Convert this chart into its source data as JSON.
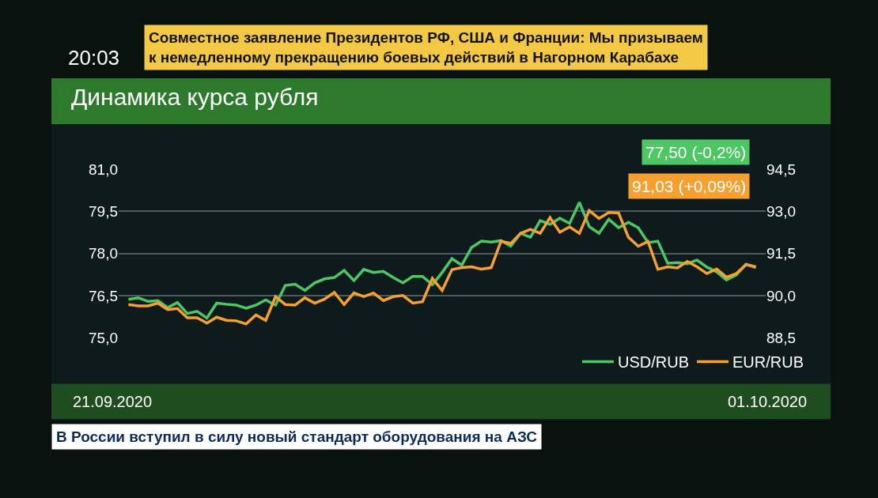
{
  "chart_data": {
    "type": "line",
    "title": "Динамика курса рубля",
    "annotations": [
      "20:03",
      "Совместное заявление Президентов РФ, США и Франции: Мы призываем\nк немедленному прекращению боевых действий в Нагорном Карабахе",
      "77,50 (-0,2%)",
      "91,03 (+0,09%)",
      "21.09.2020",
      "01.10.2020",
      "В России вступил в силу новый стандарт оборудования на АЗС"
    ],
    "series": [
      {
        "name": "USD/RUB",
        "color": "#4cc764",
        "axis": "y",
        "values": [
          76.37,
          76.43,
          76.3,
          76.33,
          76.08,
          76.26,
          75.87,
          75.95,
          75.71,
          76.24,
          76.2,
          76.17,
          76.06,
          76.17,
          76.35,
          76.17,
          76.87,
          76.91,
          76.69,
          76.96,
          77.1,
          77.15,
          77.4,
          77.04,
          77.44,
          77.33,
          77.37,
          77.15,
          76.96,
          77.19,
          77.19,
          76.89,
          77.33,
          77.82,
          77.59,
          78.22,
          78.44,
          78.41,
          78.46,
          78.27,
          78.72,
          78.58,
          79.17,
          79.04,
          79.26,
          79.07,
          79.82,
          78.96,
          78.72,
          79.22,
          78.92,
          79.11,
          78.92,
          78.39,
          78.44,
          77.66,
          77.68,
          77.64,
          77.77,
          77.52,
          77.35,
          77.06,
          77.24,
          77.62,
          77.5
        ]
      },
      {
        "name": "EUR/RUB",
        "color": "#f5a030",
        "axis": "y2",
        "values": [
          89.69,
          89.64,
          89.64,
          89.74,
          89.51,
          89.55,
          89.22,
          89.22,
          89.03,
          89.24,
          89.13,
          89.11,
          89.0,
          89.32,
          89.13,
          89.97,
          89.69,
          89.67,
          89.93,
          89.74,
          89.88,
          90.12,
          89.69,
          90.1,
          89.97,
          90.1,
          89.83,
          89.97,
          90.01,
          89.74,
          89.79,
          90.62,
          90.19,
          90.93,
          91.0,
          91.03,
          90.95,
          91.0,
          91.94,
          91.86,
          92.22,
          92.36,
          92.22,
          92.78,
          92.26,
          92.45,
          92.22,
          93.03,
          92.75,
          92.96,
          92.94,
          92.08,
          91.76,
          91.93,
          90.94,
          91.03,
          90.99,
          91.22,
          91.03,
          90.79,
          90.95,
          90.66,
          90.79,
          91.11,
          91.03
        ]
      }
    ],
    "categories": [
      null,
      null,
      null,
      null,
      null,
      null,
      null,
      null,
      null,
      null,
      null,
      null,
      null,
      null,
      null,
      null,
      null,
      null,
      null,
      null,
      null,
      null,
      null,
      null,
      null,
      null,
      null,
      null,
      null,
      null,
      null,
      null,
      null,
      null,
      null,
      null,
      null,
      null,
      null,
      null,
      null,
      null,
      null,
      null,
      null,
      null,
      null,
      null,
      null,
      null,
      null,
      null,
      null,
      null,
      null,
      null,
      null,
      null,
      null,
      null,
      null,
      null,
      null,
      null,
      null
    ],
    "ylim": [
      75,
      81
    ],
    "yticks": [
      {
        "value": 75,
        "label": "75,0"
      },
      {
        "value": 76.5,
        "label": "76,5"
      },
      {
        "value": 78,
        "label": "78,0"
      },
      {
        "value": 79.5,
        "label": "79,5"
      },
      {
        "value": 81,
        "label": "81,0"
      }
    ],
    "y2lim": [
      88.5,
      94.5
    ],
    "y2ticks": [
      {
        "value": 88.5,
        "label": "88,5"
      },
      {
        "value": 90,
        "label": "90,0"
      },
      {
        "value": 91.5,
        "label": "91,5"
      },
      {
        "value": 93,
        "label": "93,0"
      },
      {
        "value": 94.5,
        "label": "94,5"
      }
    ],
    "tick_labels": "y",
    "grid": "y",
    "legend": "bottom right",
    "marker": "none",
    "line_style": "solid"
  }
}
